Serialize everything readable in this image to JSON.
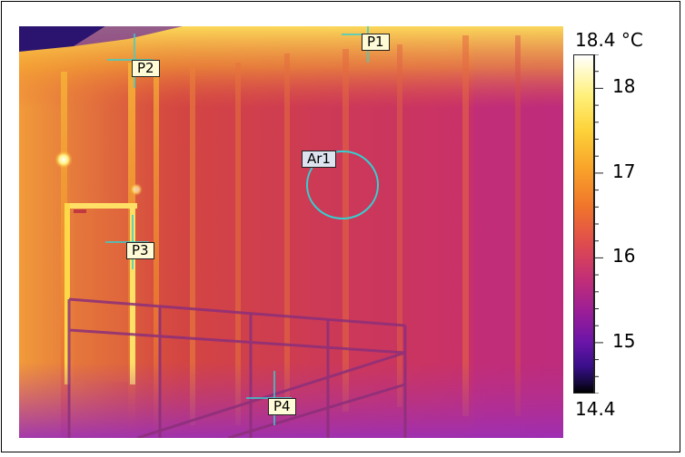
{
  "markers": {
    "p1": "P1",
    "p2": "P2",
    "p3": "P3",
    "p4": "P4",
    "ar1": "Ar1"
  },
  "scale": {
    "max_label": "18.4 °C",
    "min_label": "14.4",
    "max": 18.4,
    "min": 14.4,
    "ticks": [
      {
        "value": 18,
        "label": "18"
      },
      {
        "value": 17,
        "label": "17"
      },
      {
        "value": 16,
        "label": "16"
      },
      {
        "value": 15,
        "label": "15"
      }
    ],
    "palette": "iron"
  },
  "colors": {
    "crosshair": "#33d1d1",
    "label_bg": "#fffbd6",
    "area_label_bg": "#dde4f0"
  }
}
